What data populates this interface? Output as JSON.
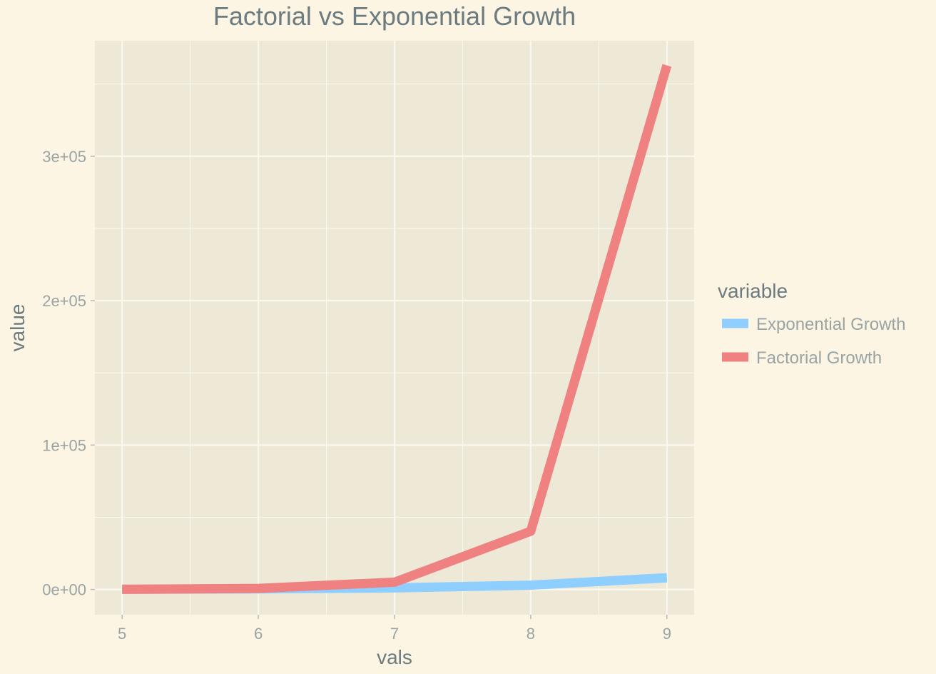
{
  "colors": {
    "background": "#fcf5e3",
    "panel": "#eee8d7",
    "grid": "#fbf8ef",
    "tick_mark": "#b8b8b0"
  },
  "chart_data": {
    "type": "line",
    "title": "Factorial vs Exponential Growth",
    "xlabel": "vals",
    "ylabel": "value",
    "x": [
      5,
      6,
      7,
      8,
      9
    ],
    "xlim": [
      4.8,
      9.2
    ],
    "ylim": [
      -17500,
      380000
    ],
    "x_ticks": [
      5,
      6,
      7,
      8,
      9
    ],
    "x_tick_labels": [
      "5",
      "6",
      "7",
      "8",
      "9"
    ],
    "y_ticks": [
      0,
      100000,
      200000,
      300000
    ],
    "y_tick_labels": [
      "0e+00",
      "1e+05",
      "2e+05",
      "3e+05"
    ],
    "grid": true,
    "legend": {
      "title": "variable",
      "position": "right"
    },
    "series": [
      {
        "name": "Exponential Growth",
        "color": "#8ecfff",
        "values": [
          148.4,
          403.4,
          1096.6,
          2981,
          8103.1
        ]
      },
      {
        "name": "Factorial Growth",
        "color": "#ef8181",
        "values": [
          120,
          720,
          5040,
          40320,
          362880
        ]
      }
    ]
  }
}
